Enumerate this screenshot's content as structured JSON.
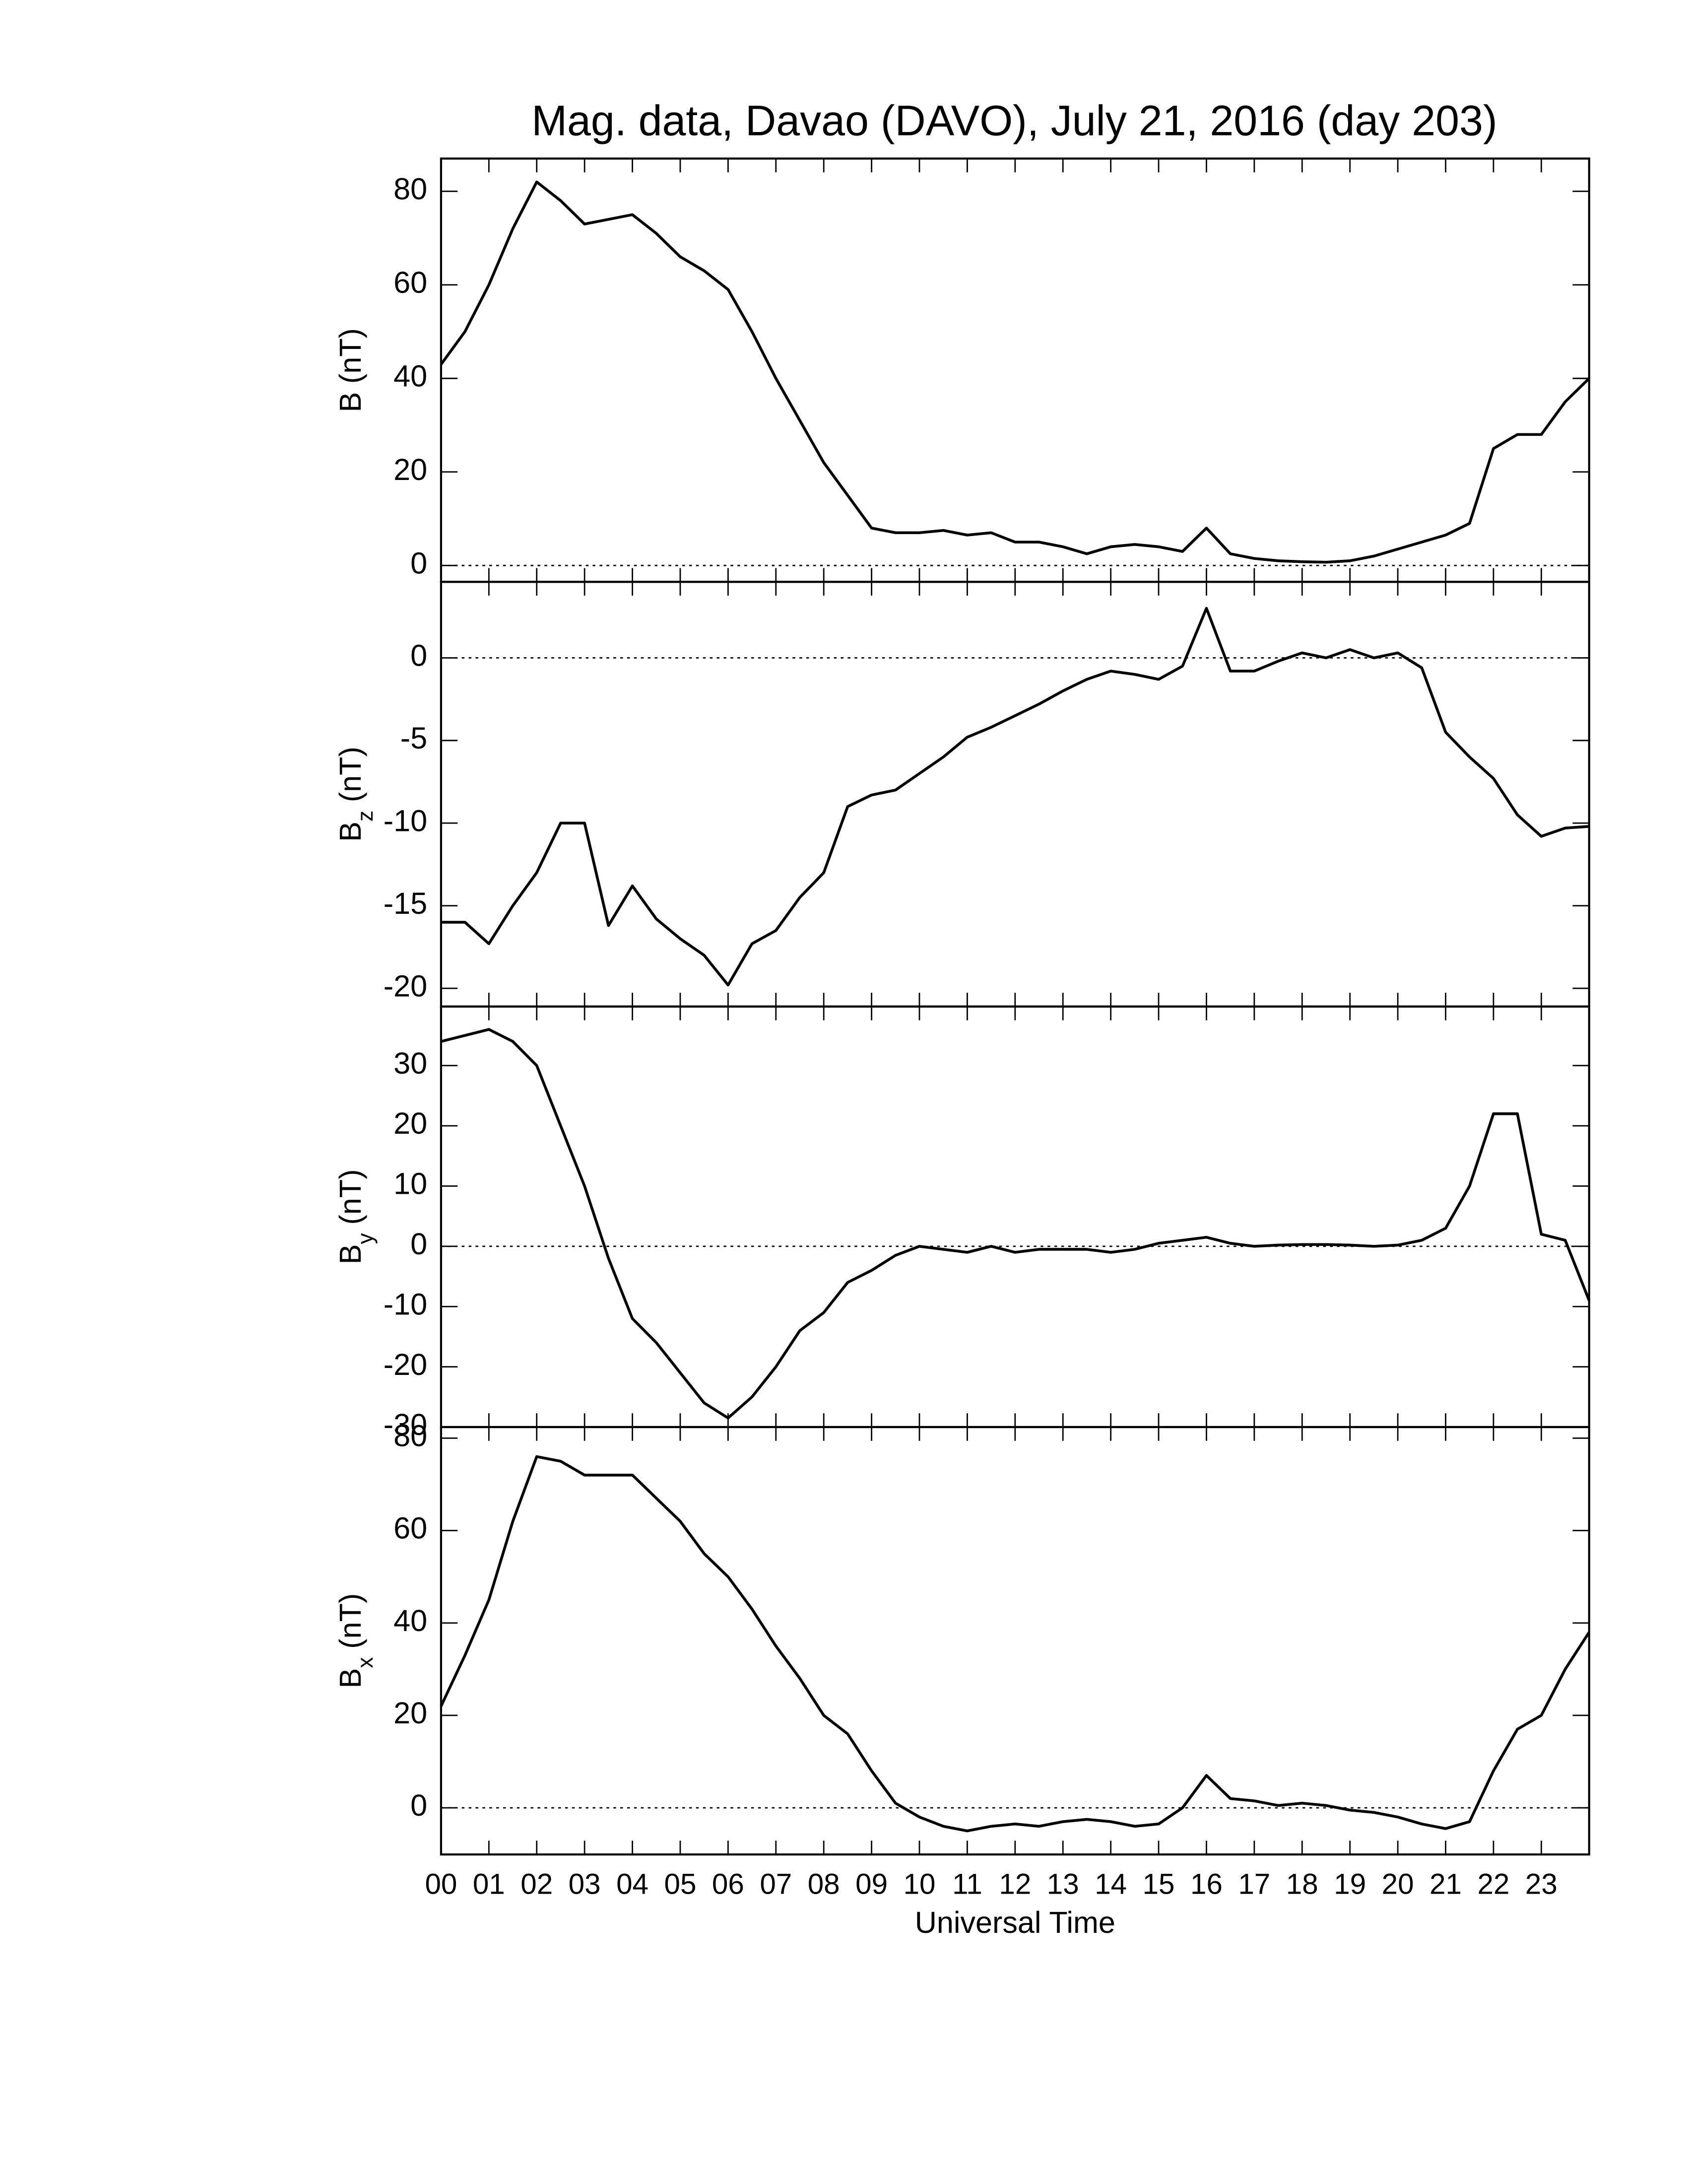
{
  "chart_data": [
    {
      "type": "line",
      "title": "Mag. data, Davao (DAVO), July 21, 2016 (day 203)",
      "ylabel": {
        "symbol": "B",
        "unit": "(nT)"
      },
      "xlim": [
        0,
        24
      ],
      "ylim": [
        -3.5,
        87
      ],
      "yticks": [
        0,
        20,
        40,
        60,
        80
      ],
      "reference_line": 0,
      "x": [
        0,
        0.5,
        1,
        1.5,
        2,
        2.5,
        3,
        3.5,
        4,
        4.5,
        5,
        5.5,
        6,
        6.5,
        7,
        7.5,
        8,
        8.5,
        9,
        9.5,
        10,
        10.5,
        11,
        11.5,
        12,
        12.5,
        13,
        13.5,
        14,
        14.5,
        15,
        15.5,
        16,
        16.5,
        17,
        17.5,
        18,
        18.5,
        19,
        19.5,
        20,
        20.5,
        21,
        21.5,
        22,
        22.5,
        23,
        23.5,
        24
      ],
      "series": [
        {
          "color": "#000000",
          "values": [
            43,
            50,
            60,
            72,
            82,
            78,
            73,
            74,
            75,
            71,
            66,
            63,
            59,
            50,
            40,
            31,
            22,
            15,
            8,
            7,
            7,
            7.5,
            6.5,
            7,
            5,
            5,
            4,
            2.5,
            4,
            4.5,
            4,
            3,
            8,
            2.5,
            1.5,
            1,
            0.8,
            0.7,
            1,
            2,
            3.5,
            5,
            6.5,
            9,
            25,
            28,
            28,
            35,
            40
          ]
        }
      ]
    },
    {
      "type": "line",
      "ylabel": {
        "symbol": "B",
        "subscript": "z",
        "unit": "(nT)"
      },
      "xlim": [
        0,
        24
      ],
      "ylim": [
        -21.1,
        4.6
      ],
      "yticks": [
        -20,
        -15,
        -10,
        -5,
        0
      ],
      "reference_line": 0,
      "x": [
        0,
        0.5,
        1,
        1.5,
        2,
        2.5,
        3,
        3.5,
        4,
        4.5,
        5,
        5.5,
        6,
        6.5,
        7,
        7.5,
        8,
        8.5,
        9,
        9.5,
        10,
        10.5,
        11,
        11.5,
        12,
        12.5,
        13,
        13.5,
        14,
        14.5,
        15,
        15.5,
        16,
        16.5,
        17,
        17.5,
        18,
        18.5,
        19,
        19.5,
        20,
        20.5,
        21,
        21.5,
        22,
        22.5,
        23,
        23.5,
        24
      ],
      "series": [
        {
          "color": "#000000",
          "values": [
            -16,
            -16,
            -17.3,
            -15,
            -13,
            -10,
            -10,
            -16.2,
            -13.8,
            -15.8,
            -17,
            -18,
            -19.8,
            -17.3,
            -16.5,
            -14.5,
            -13,
            -9,
            -8.3,
            -8,
            -7,
            -6,
            -4.8,
            -4.2,
            -3.5,
            -2.8,
            -2,
            -1.3,
            -0.8,
            -1,
            -1.3,
            -0.5,
            3,
            -0.8,
            -0.8,
            -0.2,
            0.3,
            0,
            0.5,
            0,
            0.3,
            -0.6,
            -4.5,
            -6,
            -7.3,
            -9.5,
            -10.8,
            -10.3,
            -10.2
          ]
        }
      ]
    },
    {
      "type": "line",
      "ylabel": {
        "symbol": "B",
        "subscript": "y",
        "unit": "(nT)"
      },
      "xlim": [
        0,
        24
      ],
      "ylim": [
        -30,
        39.8
      ],
      "yticks": [
        -30,
        -20,
        -10,
        0,
        10,
        20,
        30
      ],
      "reference_line": 0,
      "x": [
        0,
        0.5,
        1,
        1.5,
        2,
        2.5,
        3,
        3.5,
        4,
        4.5,
        5,
        5.5,
        6,
        6.5,
        7,
        7.5,
        8,
        8.5,
        9,
        9.5,
        10,
        10.5,
        11,
        11.5,
        12,
        12.5,
        13,
        13.5,
        14,
        14.5,
        15,
        15.5,
        16,
        16.5,
        17,
        17.5,
        18,
        18.5,
        19,
        19.5,
        20,
        20.5,
        21,
        21.5,
        22,
        22.5,
        23,
        23.5,
        24
      ],
      "series": [
        {
          "color": "#000000",
          "values": [
            34,
            35,
            36,
            34,
            30,
            20,
            10,
            -2,
            -12,
            -16,
            -21,
            -26,
            -28.5,
            -25,
            -20,
            -14,
            -11,
            -6,
            -4,
            -1.5,
            0,
            -0.5,
            -1,
            0,
            -1,
            -0.5,
            -0.5,
            -0.5,
            -1,
            -0.5,
            0.5,
            1,
            1.5,
            0.5,
            0,
            0.2,
            0.3,
            0.3,
            0.2,
            0,
            0.2,
            1,
            3,
            10,
            22,
            22,
            2,
            1,
            -9
          ]
        }
      ]
    },
    {
      "type": "line",
      "ylabel": {
        "symbol": "B",
        "subscript": "x",
        "unit": "(nT)"
      },
      "xlabel": "Universal Time",
      "xlim": [
        0,
        24
      ],
      "ylim": [
        -10.1,
        82.4
      ],
      "yticks": [
        0,
        20,
        40,
        60,
        80
      ],
      "reference_line": 0,
      "xticks": [
        {
          "value": 0,
          "label": "00"
        },
        {
          "value": 1,
          "label": "01"
        },
        {
          "value": 2,
          "label": "02"
        },
        {
          "value": 3,
          "label": "03"
        },
        {
          "value": 4,
          "label": "04"
        },
        {
          "value": 5,
          "label": "05"
        },
        {
          "value": 6,
          "label": "06"
        },
        {
          "value": 7,
          "label": "07"
        },
        {
          "value": 8,
          "label": "08"
        },
        {
          "value": 9,
          "label": "09"
        },
        10,
        11,
        12,
        13,
        14,
        15,
        16,
        17,
        18,
        19,
        20,
        21,
        22,
        23
      ],
      "x": [
        0,
        0.5,
        1,
        1.5,
        2,
        2.5,
        3,
        3.5,
        4,
        4.5,
        5,
        5.5,
        6,
        6.5,
        7,
        7.5,
        8,
        8.5,
        9,
        9.5,
        10,
        10.5,
        11,
        11.5,
        12,
        12.5,
        13,
        13.5,
        14,
        14.5,
        15,
        15.5,
        16,
        16.5,
        17,
        17.5,
        18,
        18.5,
        19,
        19.5,
        20,
        20.5,
        21,
        21.5,
        22,
        22.5,
        23,
        23.5,
        24
      ],
      "series": [
        {
          "color": "#000000",
          "values": [
            22,
            33,
            45,
            62,
            76,
            75,
            72,
            72,
            72,
            67,
            62,
            55,
            50,
            43,
            35,
            28,
            20,
            16,
            8,
            1,
            -2,
            -4,
            -5,
            -4,
            -3.5,
            -4,
            -3,
            -2.5,
            -3,
            -4,
            -3.5,
            0,
            7,
            2,
            1.5,
            0.5,
            1,
            0.5,
            -0.5,
            -1,
            -2,
            -3.5,
            -4.5,
            -3,
            8,
            17,
            20,
            30,
            38
          ]
        }
      ]
    }
  ]
}
